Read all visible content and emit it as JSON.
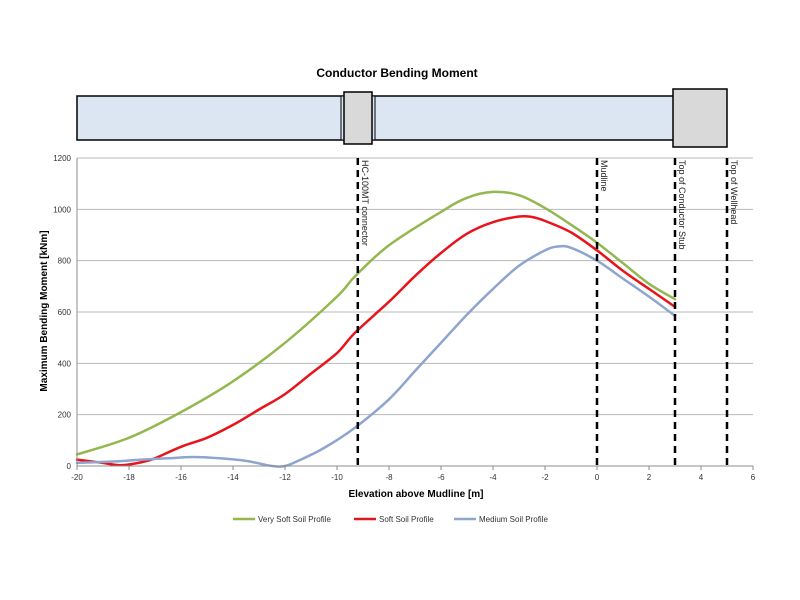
{
  "chart_data": {
    "type": "line",
    "title": "Conductor Bending Moment",
    "xlabel": "Elevation above Mudline [m]",
    "ylabel": "Maximum Bending Moment [kNm]",
    "xlim": [
      -20,
      6
    ],
    "ylim": [
      0,
      1200
    ],
    "x_ticks": [
      "-20",
      "-18",
      "-16",
      "-14",
      "-12",
      "-10",
      "-8",
      "-6",
      "-4",
      "-2",
      "0",
      "2",
      "4",
      "6"
    ],
    "y_ticks": [
      "0",
      "200",
      "400",
      "600",
      "800",
      "1000",
      "1200"
    ],
    "grid": "horizontal",
    "legend_position": "bottom",
    "series": [
      {
        "name": "Very Soft Soil Profile",
        "color": "#92b84f",
        "points": [
          [
            -20,
            45
          ],
          [
            -18,
            110
          ],
          [
            -16,
            210
          ],
          [
            -14,
            330
          ],
          [
            -12,
            480
          ],
          [
            -10,
            660
          ],
          [
            -9.3,
            740
          ],
          [
            -8,
            860
          ],
          [
            -6,
            990
          ],
          [
            -5,
            1045
          ],
          [
            -4,
            1068
          ],
          [
            -3,
            1055
          ],
          [
            -2,
            1005
          ],
          [
            -1,
            940
          ],
          [
            0,
            870
          ],
          [
            1,
            790
          ],
          [
            2,
            710
          ],
          [
            3,
            650
          ]
        ]
      },
      {
        "name": "Soft Soil Profile",
        "color": "#e8141b",
        "points": [
          [
            -20,
            25
          ],
          [
            -19,
            12
          ],
          [
            -18.3,
            3
          ],
          [
            -17.5,
            15
          ],
          [
            -17,
            30
          ],
          [
            -16,
            75
          ],
          [
            -15,
            110
          ],
          [
            -14,
            160
          ],
          [
            -13,
            220
          ],
          [
            -12,
            280
          ],
          [
            -11,
            360
          ],
          [
            -10,
            440
          ],
          [
            -9.3,
            520
          ],
          [
            -8,
            640
          ],
          [
            -7,
            740
          ],
          [
            -6,
            830
          ],
          [
            -5,
            905
          ],
          [
            -4,
            950
          ],
          [
            -3,
            972
          ],
          [
            -2.5,
            970
          ],
          [
            -2,
            955
          ],
          [
            -1,
            910
          ],
          [
            0,
            840
          ],
          [
            1,
            760
          ],
          [
            2,
            690
          ],
          [
            3,
            620
          ]
        ]
      },
      {
        "name": "Medium Soil Profile",
        "color": "#8ea5ce",
        "points": [
          [
            -20,
            12
          ],
          [
            -18.5,
            18
          ],
          [
            -17.5,
            25
          ],
          [
            -16.5,
            30
          ],
          [
            -15.5,
            35
          ],
          [
            -14.5,
            30
          ],
          [
            -13.5,
            20
          ],
          [
            -12.5,
            0
          ],
          [
            -12,
            0
          ],
          [
            -11.5,
            20
          ],
          [
            -10.5,
            70
          ],
          [
            -9.3,
            150
          ],
          [
            -8,
            260
          ],
          [
            -7,
            370
          ],
          [
            -6,
            480
          ],
          [
            -5,
            590
          ],
          [
            -4,
            690
          ],
          [
            -3,
            780
          ],
          [
            -2,
            840
          ],
          [
            -1.5,
            855
          ],
          [
            -1,
            850
          ],
          [
            0,
            800
          ],
          [
            1,
            730
          ],
          [
            2,
            660
          ],
          [
            3,
            585
          ]
        ]
      }
    ],
    "markers": [
      {
        "x": -9.2,
        "label": "HC-100MT connector"
      },
      {
        "x": 0,
        "label": "Mudline"
      },
      {
        "x": 3,
        "label": "Top of Conductor Stub"
      },
      {
        "x": 5,
        "label": "Top of Wellhead"
      }
    ]
  }
}
